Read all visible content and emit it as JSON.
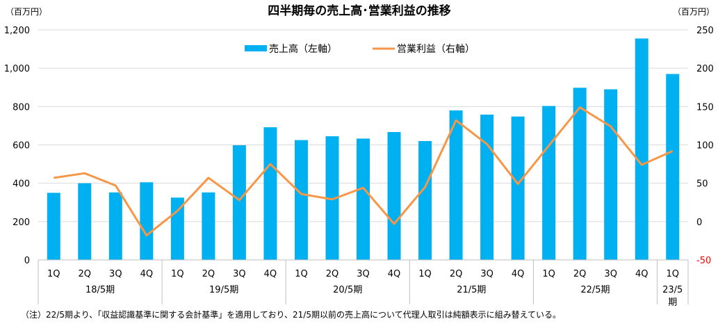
{
  "chart_data": {
    "type": "bar",
    "title": "四半期毎の売上高･営業利益の推移",
    "left_unit": "（百万円）",
    "right_unit": "（百万円）",
    "categories": [
      "1Q",
      "2Q",
      "3Q",
      "4Q",
      "1Q",
      "2Q",
      "3Q",
      "4Q",
      "1Q",
      "2Q",
      "3Q",
      "4Q",
      "1Q",
      "2Q",
      "3Q",
      "4Q",
      "1Q",
      "2Q",
      "3Q",
      "4Q",
      "1Q"
    ],
    "groups": [
      {
        "label": "18/5期",
        "start": 0,
        "count": 4
      },
      {
        "label": "19/5期",
        "start": 4,
        "count": 4
      },
      {
        "label": "20/5期",
        "start": 8,
        "count": 4
      },
      {
        "label": "21/5期",
        "start": 12,
        "count": 4
      },
      {
        "label": "22/5期",
        "start": 16,
        "count": 4
      },
      {
        "label": "23/5\n期",
        "start": 20,
        "count": 1
      }
    ],
    "series": [
      {
        "name": "売上高（左軸）",
        "type": "bar",
        "axis": "left",
        "color": "#00b0f0",
        "values": [
          350,
          400,
          352,
          405,
          325,
          352,
          598,
          692,
          625,
          645,
          633,
          667,
          620,
          780,
          758,
          748,
          803,
          898,
          890,
          1155,
          970
        ]
      },
      {
        "name": "営業利益（右軸）",
        "type": "line",
        "axis": "right",
        "color": "#f79646",
        "values": [
          57,
          63,
          47,
          -18,
          14,
          57,
          28,
          75,
          36,
          29,
          44,
          -3,
          45,
          132,
          101,
          49,
          99,
          149,
          124,
          74,
          92
        ]
      }
    ],
    "left_axis": {
      "min": 0,
      "max": 1200,
      "ticks": [
        "0",
        "200",
        "400",
        "600",
        "800",
        "1,000",
        "1,200"
      ],
      "tick_values": [
        0,
        200,
        400,
        600,
        800,
        1000,
        1200
      ]
    },
    "right_axis": {
      "min": -50,
      "max": 250,
      "ticks": [
        "-50",
        "0",
        "50",
        "100",
        "150",
        "200",
        "250"
      ],
      "tick_values": [
        -50,
        0,
        50,
        100,
        150,
        200,
        250
      ]
    },
    "grid": true,
    "legend_position": "top-center"
  },
  "footnote": "（注）22/5期より、「収益認識基準に関する会計基準」を適用しており、21/5期以前の売上高について代理人取引は純額表示に組み替えている。"
}
